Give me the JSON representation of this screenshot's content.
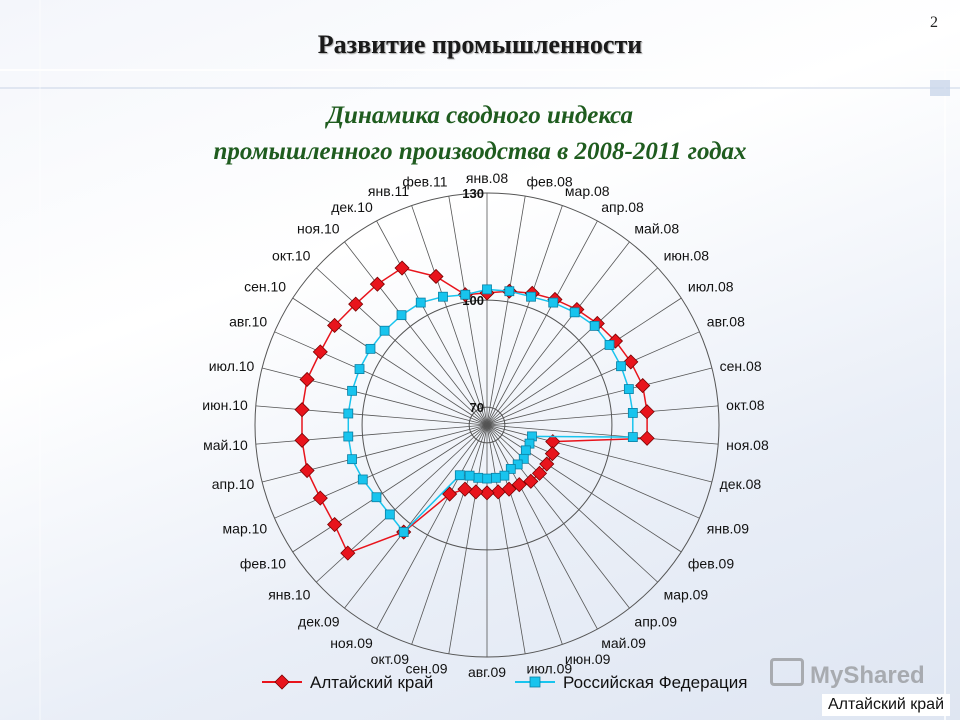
{
  "slide_number": "2",
  "section_title": "Развитие промышленности",
  "chart_title_line1": "Динамика сводного индекса",
  "chart_title_line2": "промышленного производства в 2008-2011 годах",
  "watermark": "MyShared",
  "region_label": "Алтайский край",
  "colors": {
    "altai": "#e8141c",
    "russia": "#18c4ee",
    "grid": "#555555",
    "title": "#1f5c1f"
  },
  "chart_data": {
    "type": "radar",
    "categories": [
      "янв.08",
      "фев.08",
      "мар.08",
      "апр.08",
      "май.08",
      "июн.08",
      "июл.08",
      "авг.08",
      "сен.08",
      "окт.08",
      "ноя.08",
      "дек.08",
      "янв.09",
      "фев.09",
      "мар.09",
      "апр.09",
      "май.09",
      "июн.09",
      "июл.09",
      "авг.09",
      "сен.09",
      "окт.09",
      "ноя.09",
      "дек.09",
      "янв.10",
      "фев.10",
      "мар.10",
      "апр.10",
      "май.10",
      "июн.10",
      "июл.10",
      "авг.10",
      "сен.10",
      "окт.10",
      "ноя.10",
      "дек.10",
      "янв.11",
      "фев.11"
    ],
    "radial_ticks": [
      70,
      100,
      130
    ],
    "rmin": 65,
    "rmax": 130,
    "series": [
      {
        "name": "Алтайский край",
        "marker": "diamond",
        "color": "#e8141c",
        "values": [
          102,
          103,
          104,
          105,
          106,
          107,
          108,
          109,
          110,
          110,
          110,
          84,
          85,
          85,
          85,
          85,
          84,
          84,
          84,
          84,
          84,
          84,
          87,
          103,
          118,
          116,
          116,
          117,
          117,
          117,
          117,
          116,
          116,
          115,
          115,
          115,
          109,
          102
        ]
      },
      {
        "name": "Российская Федерация",
        "marker": "square",
        "color": "#18c4ee",
        "values": [
          103,
          103,
          103,
          104,
          105,
          106,
          106,
          106,
          106,
          106,
          106,
          78,
          78,
          78,
          79,
          79,
          79,
          80,
          80,
          80,
          80,
          80,
          81,
          103,
          102,
          102,
          103,
          104,
          104,
          104,
          104,
          104,
          104,
          104,
          104,
          104,
          103,
          102
        ]
      }
    ]
  },
  "legend": [
    {
      "label": "Алтайский край"
    },
    {
      "label": "Российская Федерация"
    }
  ]
}
